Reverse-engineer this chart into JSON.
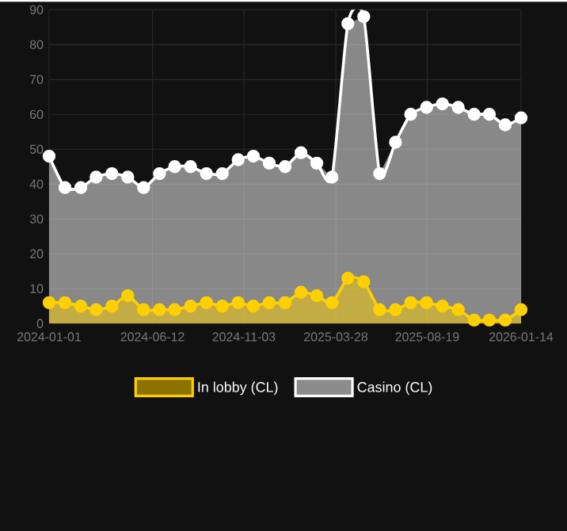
{
  "chart_data": {
    "type": "area",
    "x": [
      "2024-01-01",
      "2024-01-26",
      "2024-02-20",
      "2024-03-15",
      "2024-04-09",
      "2024-05-04",
      "2024-05-29",
      "2024-06-23",
      "2024-07-17",
      "2024-08-11",
      "2024-09-05",
      "2024-09-30",
      "2024-10-25",
      "2024-11-18",
      "2024-12-13",
      "2025-01-07",
      "2025-02-01",
      "2025-02-26",
      "2025-03-22",
      "2025-04-16",
      "2025-05-11",
      "2025-06-05",
      "2025-06-30",
      "2025-07-24",
      "2025-08-18",
      "2025-09-12",
      "2025-10-07",
      "2025-11-01",
      "2025-11-25",
      "2025-12-20",
      "2026-01-14"
    ],
    "series": [
      {
        "name": "Casino (CL)",
        "color": "#ffffff",
        "values": [
          48,
          39,
          39,
          42,
          43,
          42,
          39,
          43,
          45,
          45,
          43,
          43,
          47,
          48,
          46,
          45,
          49,
          46,
          42,
          86,
          88,
          43,
          52,
          60,
          62,
          63,
          62,
          60,
          60,
          57,
          59
        ]
      },
      {
        "name": "In lobby (CL)",
        "color": "#ffd000",
        "values": [
          6,
          6,
          5,
          4,
          5,
          8,
          4,
          4,
          4,
          5,
          6,
          5,
          6,
          5,
          6,
          6,
          9,
          8,
          6,
          13,
          12,
          4,
          4,
          6,
          6,
          5,
          4,
          1,
          1,
          1,
          4
        ]
      }
    ],
    "xlim": [
      "2024-01-01",
      "2026-01-14"
    ],
    "xticks": [
      "2024-01-01",
      "2024-06-12",
      "2024-11-03",
      "2025-03-28",
      "2025-08-19",
      "2026-01-14"
    ],
    "ylim": [
      0,
      90
    ],
    "yticks": [
      0,
      10,
      20,
      30,
      40,
      50,
      60,
      70,
      80,
      90
    ],
    "grid": true,
    "legend": "bottom",
    "marker": "circle",
    "line_style": "solid"
  }
}
